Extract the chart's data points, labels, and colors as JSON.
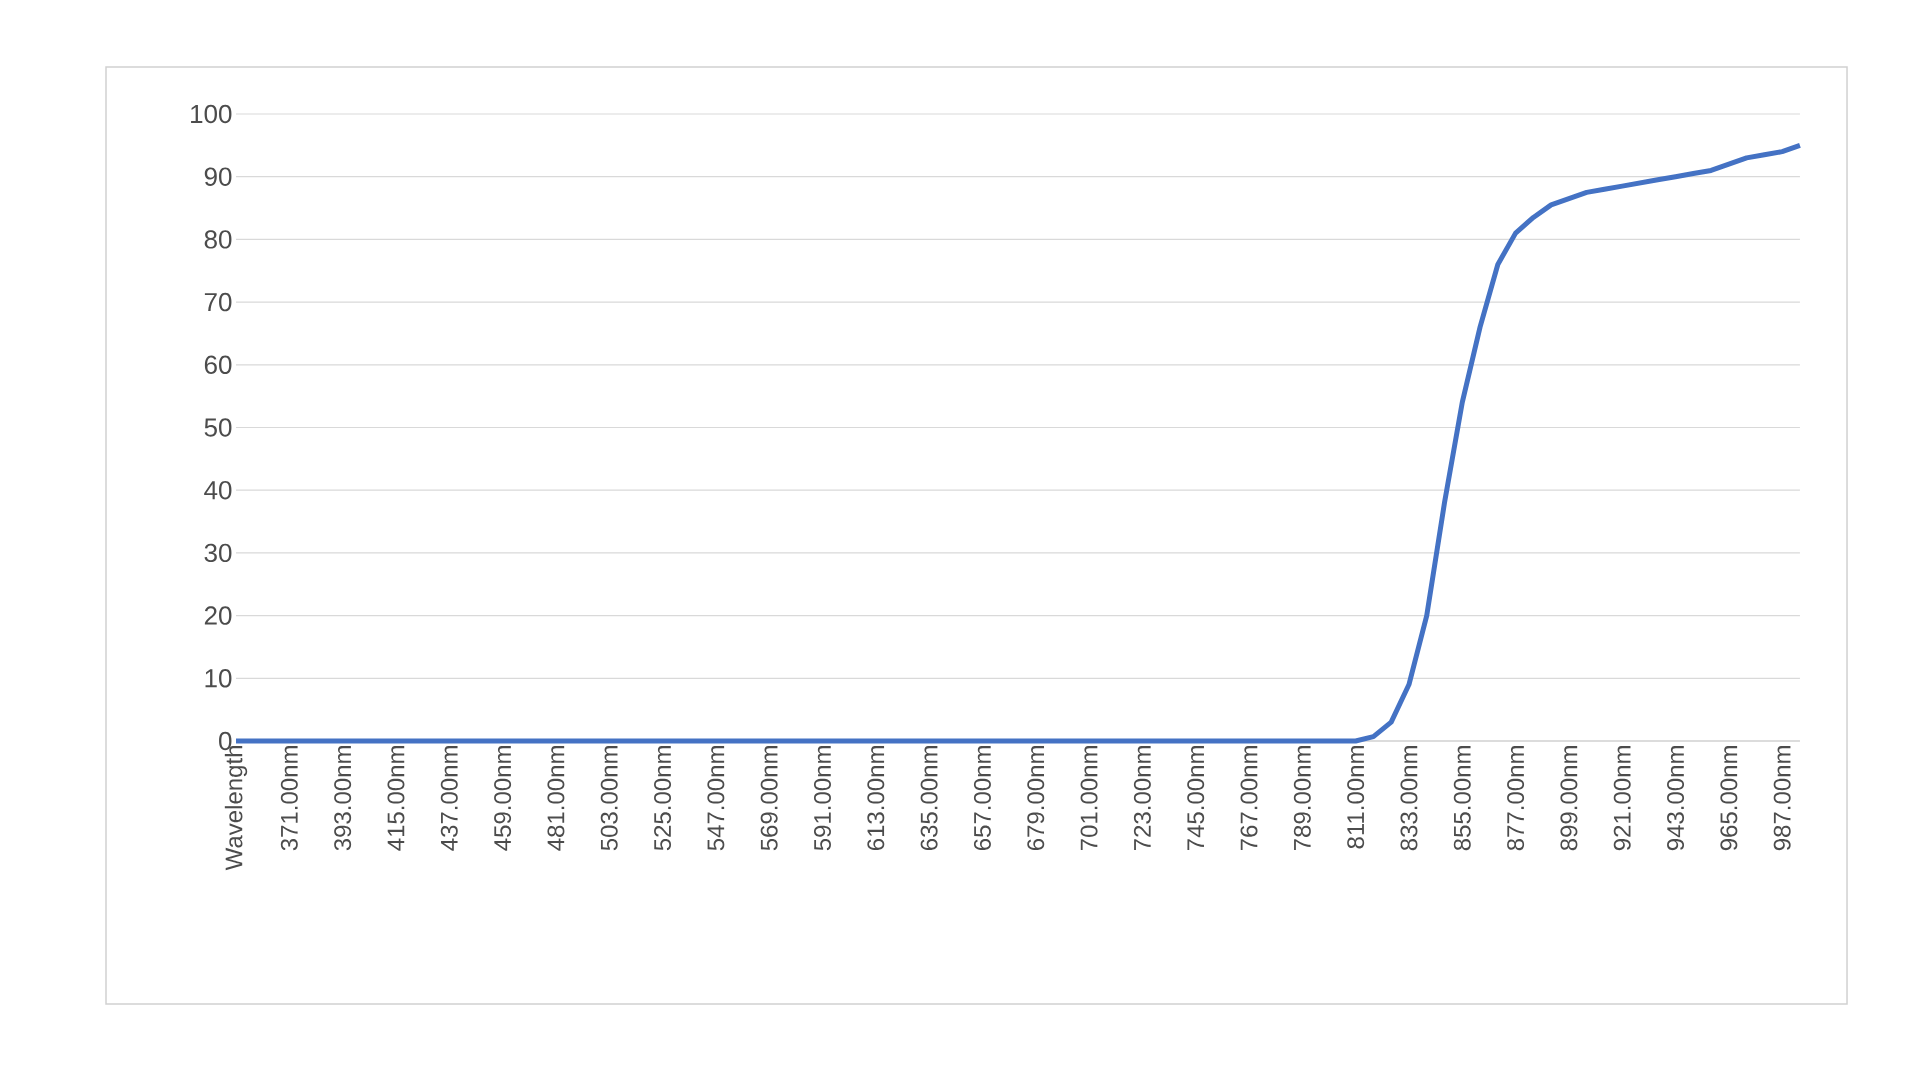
{
  "chart_data": {
    "type": "line",
    "categories": [
      "Wavelength",
      null,
      null,
      "371.00nm",
      null,
      null,
      "393.00nm",
      null,
      null,
      "415.00nm",
      null,
      null,
      "437.00nm",
      null,
      null,
      "459.00nm",
      null,
      null,
      "481.00nm",
      null,
      null,
      "503.00nm",
      null,
      null,
      "525.00nm",
      null,
      null,
      "547.00nm",
      null,
      null,
      "569.00nm",
      null,
      null,
      "591.00nm",
      null,
      null,
      "613.00nm",
      null,
      null,
      "635.00nm",
      null,
      null,
      "657.00nm",
      null,
      null,
      "679.00nm",
      null,
      null,
      "701.00nm",
      null,
      null,
      "723.00nm",
      null,
      null,
      "745.00nm",
      null,
      null,
      "767.00nm",
      null,
      null,
      "789.00nm",
      null,
      null,
      "811.00nm",
      null,
      null,
      "833.00nm",
      null,
      null,
      "855.00nm",
      null,
      null,
      "877.00nm",
      null,
      null,
      "899.00nm",
      null,
      null,
      "921.00nm",
      null,
      null,
      "943.00nm",
      null,
      null,
      "965.00nm",
      null,
      null,
      "987.00nm",
      null
    ],
    "values": [
      0,
      0,
      0,
      0,
      0,
      0,
      0,
      0,
      0,
      0,
      0,
      0,
      0,
      0,
      0,
      0,
      0,
      0,
      0,
      0,
      0,
      0,
      0,
      0,
      0,
      0,
      0,
      0,
      0,
      0,
      0,
      0,
      0,
      0,
      0,
      0,
      0,
      0,
      0,
      0,
      0,
      0,
      0,
      0,
      0,
      0,
      0,
      0,
      0,
      0,
      0,
      0,
      0,
      0,
      0,
      0,
      0,
      0,
      0,
      0,
      0,
      0,
      0,
      0,
      0.7,
      3,
      9,
      20,
      38,
      54,
      66,
      76,
      81,
      83.5,
      85.5,
      86.5,
      87.5,
      88,
      88.5,
      89,
      89.5,
      90,
      90.5,
      91,
      92,
      93,
      93.5,
      94,
      95
    ],
    "color": "#4472c4",
    "ylim": [
      0,
      100
    ],
    "yticks": [
      0,
      10,
      20,
      30,
      40,
      50,
      60,
      70,
      80,
      90,
      100
    ],
    "grid": "y",
    "marker": "none",
    "line_style": "solid"
  }
}
